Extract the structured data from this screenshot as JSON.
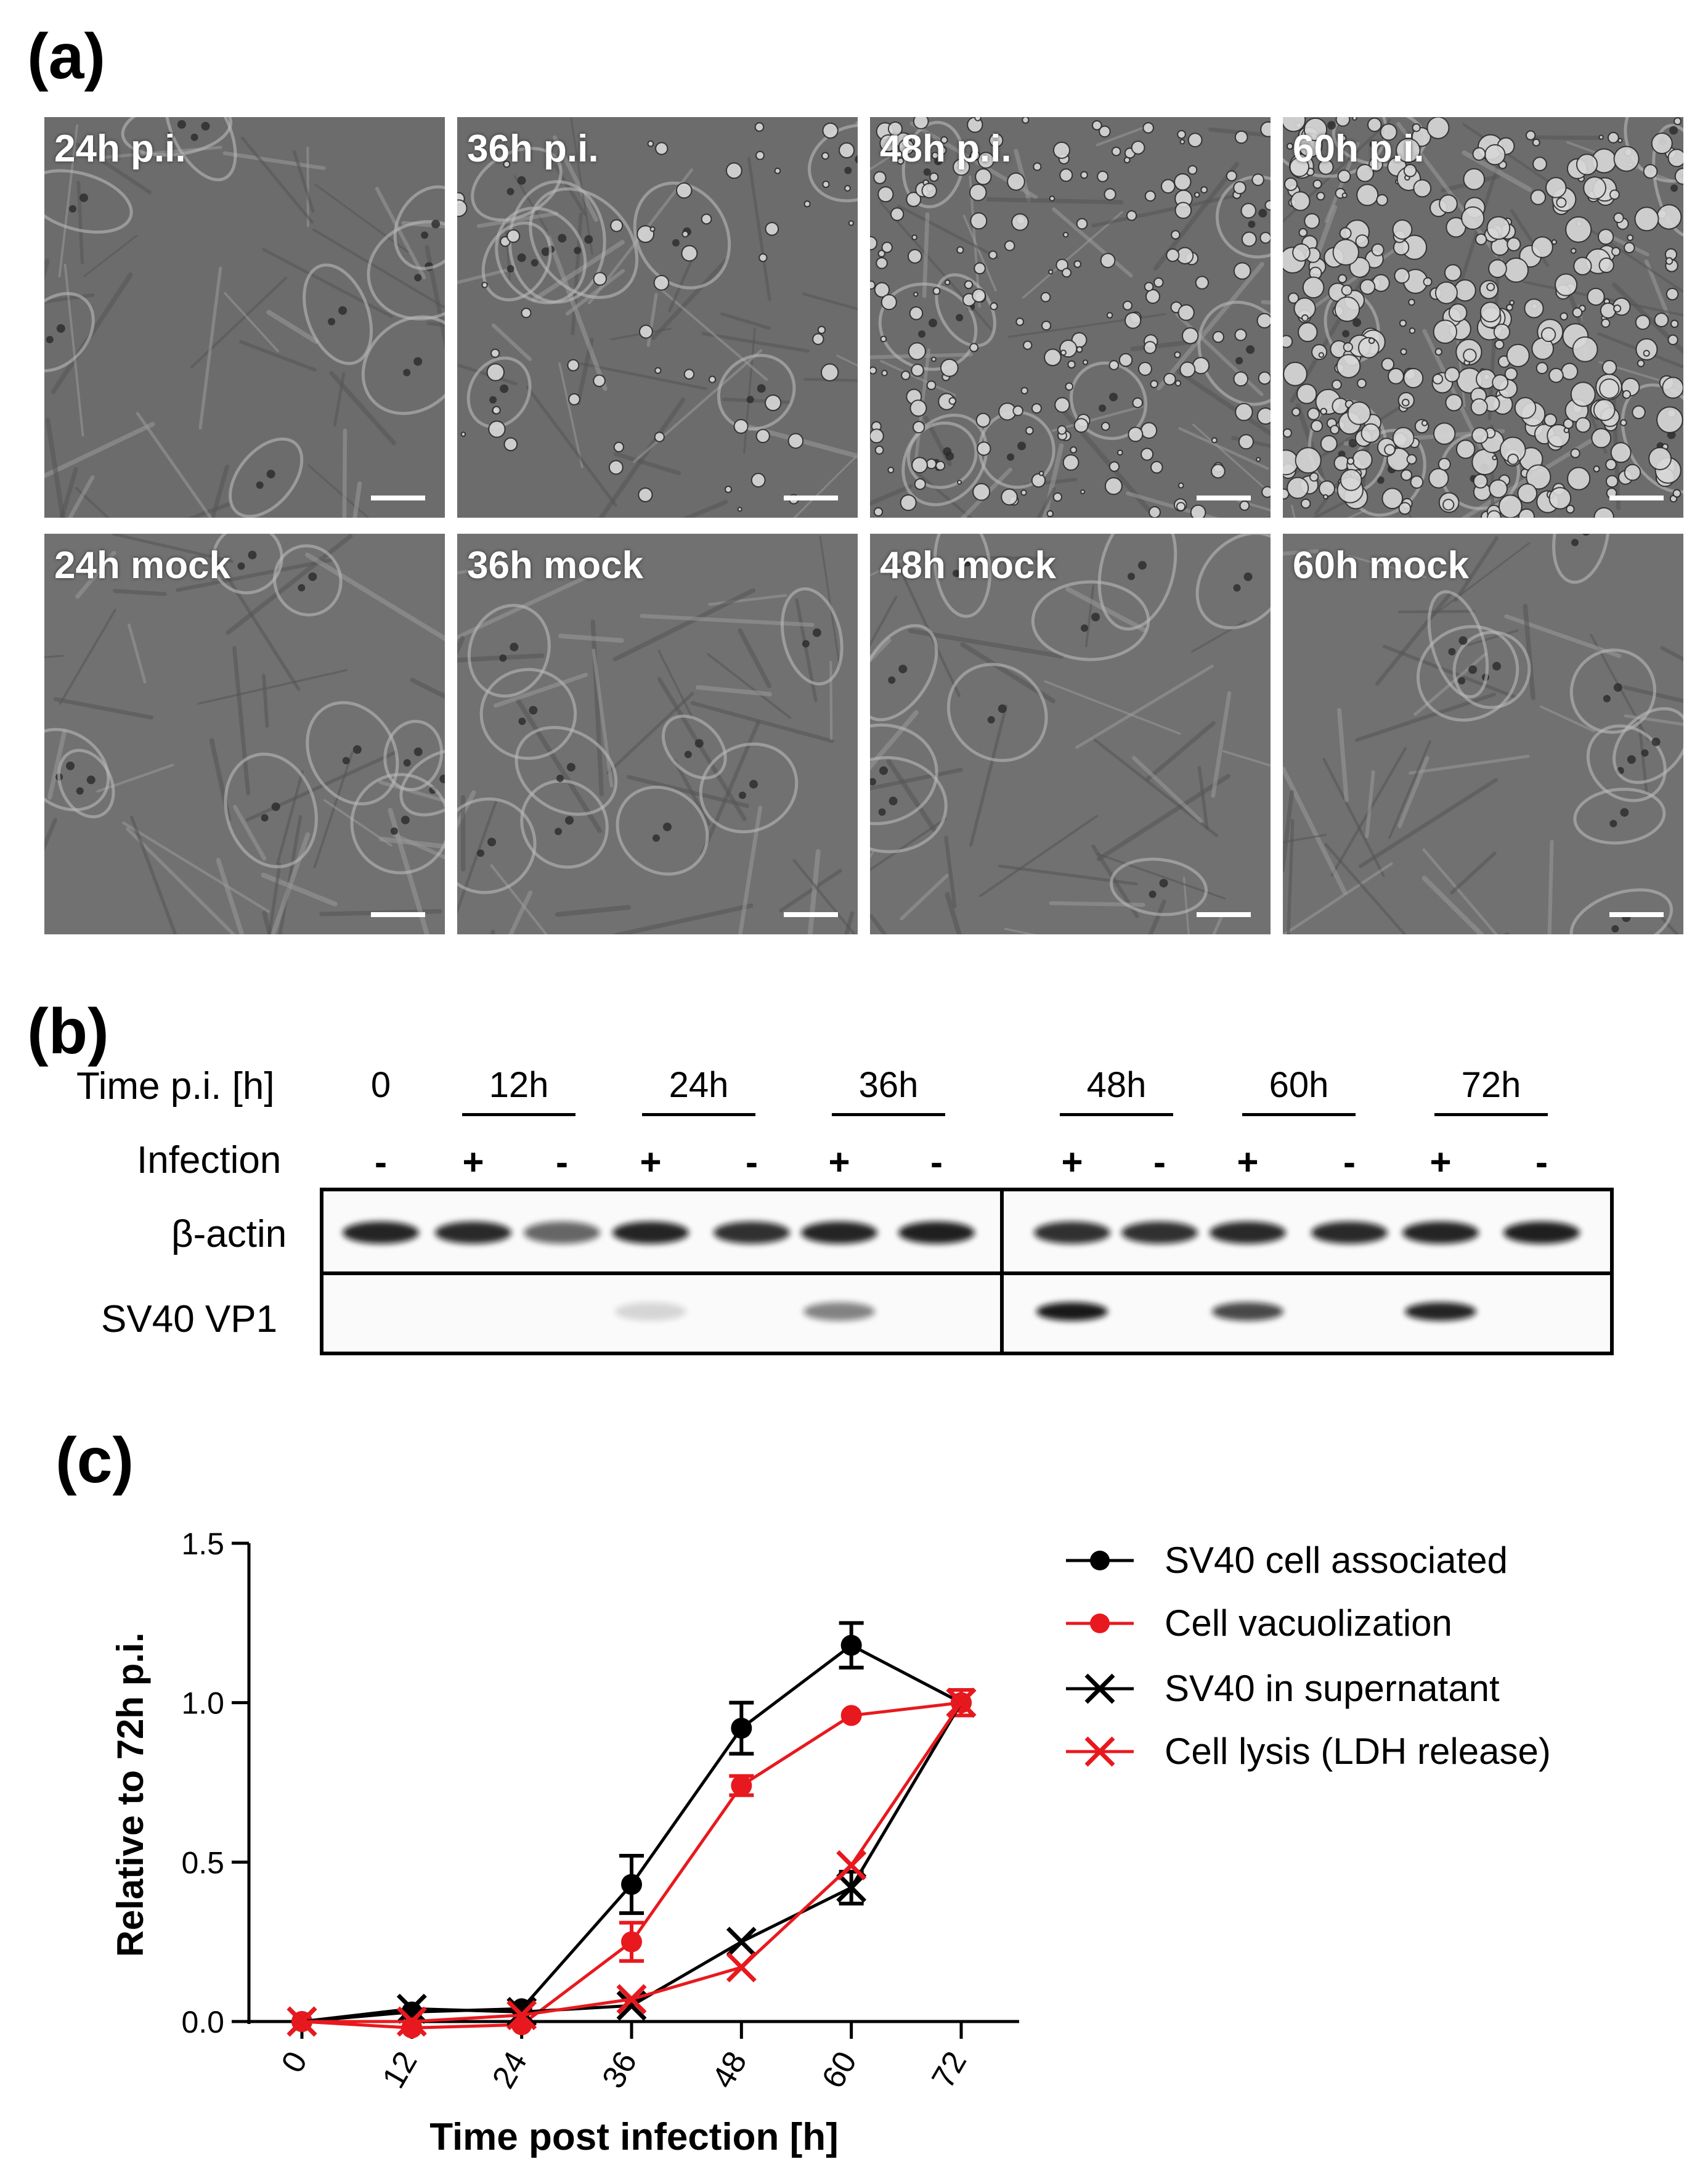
{
  "panel_a": {
    "label": "(a)",
    "tiles": [
      {
        "caption": "24h p.i."
      },
      {
        "caption": "36h p.i."
      },
      {
        "caption": "48h p.i."
      },
      {
        "caption": "60h p.i."
      },
      {
        "caption": "24h mock"
      },
      {
        "caption": "36h mock"
      },
      {
        "caption": "48h mock"
      },
      {
        "caption": "60h mock"
      }
    ]
  },
  "panel_b": {
    "label": "(b)",
    "time_label": "Time p.i. [h]",
    "infection_label": "Infection",
    "time_points": [
      "0",
      "12h",
      "24h",
      "36h",
      "48h",
      "60h",
      "72h"
    ],
    "infection_signs": [
      "-",
      "+",
      "-",
      "+",
      "-",
      "+",
      "-",
      "+",
      "-",
      "+",
      "-",
      "+",
      "-"
    ],
    "rows": [
      {
        "name": "β-actin"
      },
      {
        "name": "SV40 VP1"
      }
    ],
    "actin_intensity": [
      0.9,
      0.88,
      0.62,
      0.9,
      0.85,
      0.9,
      0.92,
      0.85,
      0.85,
      0.88,
      0.88,
      0.9,
      0.92
    ],
    "vp1_intensity": [
      0,
      0,
      0,
      0.15,
      0,
      0.5,
      0,
      0.95,
      0,
      0.75,
      0,
      0.9,
      0
    ]
  },
  "panel_c": {
    "label": "(c)"
  },
  "chart_data": {
    "type": "line",
    "xlabel": "Time post infection [h]",
    "ylabel": "Relative to 72h p.i.",
    "x": [
      0,
      12,
      24,
      36,
      48,
      60,
      72
    ],
    "x_ticks": [
      "0",
      "12",
      "24",
      "36",
      "48",
      "60",
      "72"
    ],
    "y_ticks": [
      "0.0",
      "0.5",
      "1.0",
      "1.5"
    ],
    "ylim": [
      0,
      1.5
    ],
    "legend_position": "top-right",
    "series": [
      {
        "name": "SV40 cell associated",
        "color": "#000000",
        "marker": "circle",
        "values": [
          0,
          0.03,
          0.04,
          0.43,
          0.92,
          1.18,
          1.0
        ],
        "errors": [
          0,
          0,
          0,
          0.09,
          0.08,
          0.07,
          0
        ]
      },
      {
        "name": "Cell vacuolization",
        "color": "#e8191e",
        "marker": "circle",
        "values": [
          0,
          -0.02,
          -0.01,
          0.25,
          0.74,
          0.96,
          1.0
        ],
        "errors": [
          0,
          0,
          0,
          0.06,
          0.03,
          0,
          0.04
        ]
      },
      {
        "name": "SV40 in supernatant",
        "color": "#000000",
        "marker": "x",
        "values": [
          0,
          0.04,
          0.03,
          0.05,
          0.25,
          0.42,
          1.0
        ],
        "errors": [
          0,
          0,
          0,
          0,
          0,
          0.05,
          0
        ]
      },
      {
        "name": "Cell lysis (LDH release)",
        "color": "#e8191e",
        "marker": "x",
        "values": [
          0,
          0.0,
          0.02,
          0.07,
          0.17,
          0.49,
          1.0
        ],
        "errors": [
          0,
          0,
          0,
          0,
          0,
          0,
          0
        ]
      }
    ]
  }
}
